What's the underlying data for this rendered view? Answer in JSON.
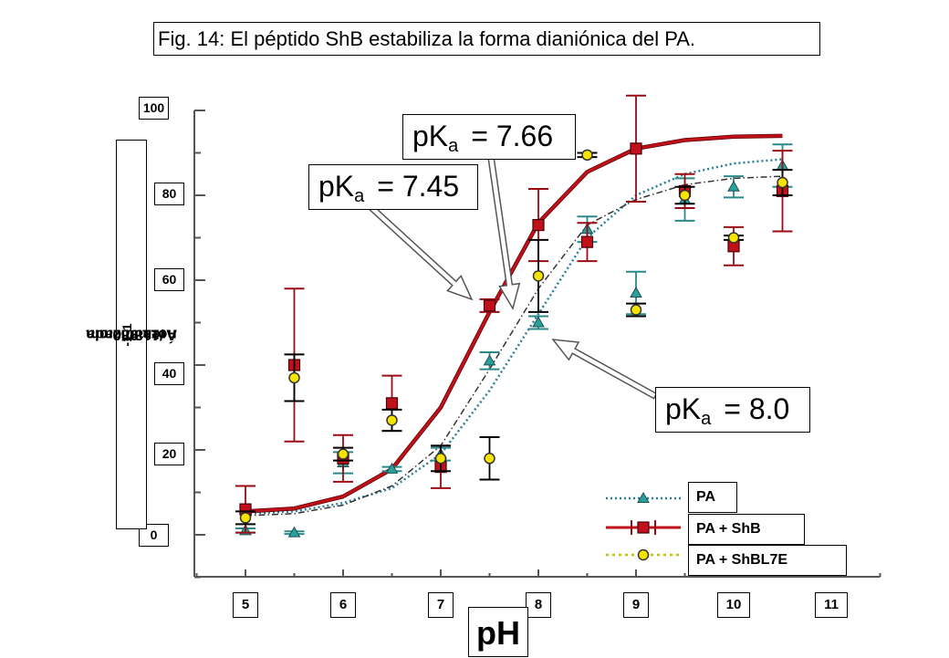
{
  "title": "Fig. 14: El péptido ShB estabiliza la forma dianiónica del PA.",
  "annotations": [
    {
      "prefix": "pK",
      "sub": "a",
      "value": "= 7.66"
    },
    {
      "prefix": "pK",
      "sub": "a",
      "value": "= 7.45"
    },
    {
      "prefix": "pK",
      "sub": "a",
      "value": "= 8.0"
    }
  ],
  "chart_data": {
    "type": "scatter",
    "xlabel": "pH",
    "ylabel_main": "Área 980 cm",
    "ylabel_sup1": "-1",
    "ylabel_mid": "/1180 cm",
    "ylabel_sup2": "-1",
    "ylabel_tail": " normalizada",
    "xlim": [
      4.5,
      11.5
    ],
    "ylim": [
      -10,
      110
    ],
    "x_ticks": [
      5,
      6,
      7,
      8,
      9,
      10,
      11
    ],
    "x_tick_labels": [
      "5",
      "6",
      "7",
      "8",
      "9",
      "10",
      "11"
    ],
    "y_ticks": [
      0,
      20,
      40,
      60,
      80,
      100
    ],
    "y_tick_labels": [
      "0",
      "20",
      "40",
      "60",
      "80",
      "100"
    ],
    "legend_position": "bottom-right",
    "series": [
      {
        "name": "PA",
        "color": "#2aa198",
        "marker": "triangle",
        "line": "dotted",
        "points": [
          {
            "x": 5.0,
            "y": 1.0,
            "err": 0.5
          },
          {
            "x": 5.5,
            "y": 0.5,
            "err": 0.3
          },
          {
            "x": 6.0,
            "y": 17.0,
            "err": 2.5
          },
          {
            "x": 6.5,
            "y": 15.5,
            "err": 0.5
          },
          {
            "x": 7.0,
            "y": 19.0,
            "err": 1.5
          },
          {
            "x": 7.5,
            "y": 41.0,
            "err": 2.0
          },
          {
            "x": 8.0,
            "y": 50.0,
            "err": 1.5
          },
          {
            "x": 8.5,
            "y": 72.0,
            "err": 3.0
          },
          {
            "x": 9.0,
            "y": 57.0,
            "err": 5.0
          },
          {
            "x": 9.5,
            "y": 79.0,
            "err": 5.0
          },
          {
            "x": 10.0,
            "y": 82.0,
            "err": 2.5
          },
          {
            "x": 10.5,
            "y": 87.0,
            "err": 5.0
          }
        ],
        "fit_x": [
          5.0,
          5.5,
          6.0,
          6.5,
          7.0,
          7.5,
          8.0,
          8.5,
          9.0,
          9.5,
          10.0,
          10.5
        ],
        "fit_y": [
          5.0,
          5.5,
          7.5,
          11.0,
          19.0,
          34.0,
          52.0,
          70.0,
          80.0,
          85.0,
          87.5,
          88.5
        ]
      },
      {
        "name": "PA + ShB",
        "color": "#c0101a",
        "marker": "square",
        "line": "solid",
        "points": [
          {
            "x": 5.0,
            "y": 6.0,
            "err": 5.5
          },
          {
            "x": 5.5,
            "y": 40.0,
            "err": 18.0
          },
          {
            "x": 6.0,
            "y": 18.0,
            "err": 5.5
          },
          {
            "x": 6.5,
            "y": 31.0,
            "err": 6.5
          },
          {
            "x": 7.0,
            "y": 16.0,
            "err": 5.0
          },
          {
            "x": 7.5,
            "y": 54.0,
            "err": 1.5
          },
          {
            "x": 8.0,
            "y": 73.0,
            "err": 8.5
          },
          {
            "x": 8.5,
            "y": 69.0,
            "err": 4.5
          },
          {
            "x": 9.0,
            "y": 91.0,
            "err": 12.5
          },
          {
            "x": 9.5,
            "y": 81.0,
            "err": 4.0
          },
          {
            "x": 10.0,
            "y": 68.0,
            "err": 4.5
          },
          {
            "x": 10.5,
            "y": 81.0,
            "err": 9.5
          }
        ],
        "fit_x": [
          5.0,
          5.5,
          6.0,
          6.5,
          7.0,
          7.5,
          8.0,
          8.5,
          9.0,
          9.5,
          10.0,
          10.5
        ],
        "fit_y": [
          5.5,
          6.2,
          9.0,
          15.5,
          30.0,
          52.5,
          73.5,
          85.5,
          91.0,
          93.0,
          93.8,
          94.0
        ]
      },
      {
        "name": "PA + ShBL7E",
        "color": "#f5e400",
        "marker": "circle",
        "line": "dash-dot",
        "points": [
          {
            "x": 5.0,
            "y": 4.0,
            "err": 1.5
          },
          {
            "x": 5.5,
            "y": 37.0,
            "err": 5.5
          },
          {
            "x": 6.0,
            "y": 19.0,
            "err": 1.5
          },
          {
            "x": 6.5,
            "y": 27.0,
            "err": 2.5
          },
          {
            "x": 7.0,
            "y": 18.0,
            "err": 3.0
          },
          {
            "x": 7.5,
            "y": 18.0,
            "err": 5.0
          },
          {
            "x": 8.0,
            "y": 61.0,
            "err": 8.5
          },
          {
            "x": 8.5,
            "y": 89.5,
            "err": 0.5
          },
          {
            "x": 9.0,
            "y": 53.0,
            "err": 1.5
          },
          {
            "x": 9.5,
            "y": 80.0,
            "err": 2.0
          },
          {
            "x": 10.0,
            "y": 70.0,
            "err": 0.5
          },
          {
            "x": 10.5,
            "y": 83.0,
            "err": 3.0
          }
        ],
        "fit_x": [
          5.0,
          5.5,
          6.0,
          6.5,
          7.0,
          7.5,
          8.0,
          8.5,
          9.0,
          9.5,
          10.0,
          10.5
        ],
        "fit_y": [
          4.5,
          5.0,
          7.0,
          11.5,
          21.0,
          39.0,
          58.0,
          73.0,
          79.0,
          82.5,
          84.0,
          84.5
        ]
      }
    ]
  }
}
